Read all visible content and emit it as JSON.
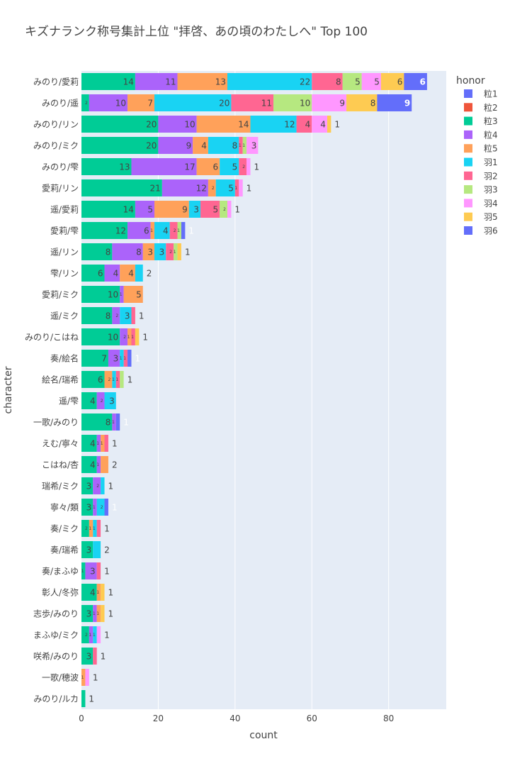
{
  "chart_data": {
    "type": "bar",
    "orientation": "horizontal",
    "barmode": "stack",
    "title": "キズナランク称号集計上位 \"拝啓、あの頃のわたしへ\" Top 100",
    "xlabel": "count",
    "ylabel": "character",
    "xlim": [
      0,
      95
    ],
    "xticks": [
      0,
      20,
      40,
      60,
      80
    ],
    "grid": true,
    "legend_title": "honor",
    "legend_position": "right",
    "categories": [
      "みのり/愛莉",
      "みのり/遥",
      "みのり/リン",
      "みのり/ミク",
      "みのり/雫",
      "愛莉/リン",
      "遥/愛莉",
      "愛莉/雫",
      "遥/リン",
      "雫/リン",
      "愛莉/ミク",
      "遥/ミク",
      "みのり/こはね",
      "奏/絵名",
      "絵名/瑞希",
      "遥/雫",
      "一歌/みのり",
      "えむ/寧々",
      "こはね/杏",
      "瑞希/ミク",
      "寧々/類",
      "奏/ミク",
      "奏/瑞希",
      "奏/まふゆ",
      "彰人/冬弥",
      "志歩/みのり",
      "まふゆ/ミク",
      "咲希/みのり",
      "一歌/穂波",
      "みのり/ルカ"
    ],
    "series": [
      {
        "name": "粒1",
        "color": "#636efa",
        "values": [
          0,
          0,
          0,
          0,
          0,
          0,
          0,
          0,
          0,
          0,
          0,
          0,
          0,
          0,
          0,
          0,
          0,
          0,
          0,
          0,
          0,
          0,
          0,
          0,
          0,
          0,
          0,
          0,
          0,
          0
        ]
      },
      {
        "name": "粒2",
        "color": "#ef553b",
        "values": [
          0,
          0,
          0,
          0,
          0,
          0,
          0,
          0,
          0,
          0,
          0,
          0,
          0,
          0,
          0,
          0,
          0,
          0,
          0,
          0,
          0,
          0,
          0,
          0,
          0,
          0,
          0,
          0,
          0,
          0
        ]
      },
      {
        "name": "粒3",
        "color": "#00cc96",
        "values": [
          14,
          2,
          20,
          20,
          13,
          21,
          14,
          12,
          8,
          6,
          10,
          8,
          10,
          7,
          6,
          4,
          8,
          4,
          4,
          3,
          3,
          2,
          3,
          1,
          4,
          3,
          2,
          3,
          0,
          1
        ]
      },
      {
        "name": "粒4",
        "color": "#ab63fa",
        "values": [
          11,
          10,
          10,
          9,
          17,
          12,
          5,
          6,
          8,
          4,
          1,
          2,
          2,
          3,
          0,
          2,
          1,
          1,
          1,
          2,
          1,
          0,
          0,
          3,
          0,
          1,
          1,
          0,
          0,
          0
        ]
      },
      {
        "name": "粒5",
        "color": "#ffa15a",
        "values": [
          13,
          7,
          14,
          4,
          6,
          2,
          9,
          1,
          3,
          4,
          5,
          0,
          1,
          0,
          2,
          0,
          0,
          1,
          2,
          0,
          0,
          1,
          0,
          0,
          1,
          1,
          0,
          0,
          1,
          0
        ]
      },
      {
        "name": "羽1",
        "color": "#19d3f3",
        "values": [
          22,
          20,
          12,
          8,
          5,
          5,
          3,
          4,
          3,
          2,
          0,
          3,
          0,
          1,
          1,
          3,
          0,
          0,
          0,
          1,
          2,
          1,
          2,
          0,
          0,
          0,
          1,
          0,
          0,
          0
        ]
      },
      {
        "name": "羽2",
        "color": "#ff6692",
        "values": [
          8,
          11,
          4,
          1,
          2,
          1,
          5,
          2,
          2,
          0,
          0,
          1,
          1,
          1,
          1,
          0,
          0,
          1,
          0,
          0,
          0,
          1,
          0,
          1,
          0,
          0,
          0,
          1,
          0,
          0
        ]
      },
      {
        "name": "羽3",
        "color": "#b6e880",
        "values": [
          5,
          10,
          0,
          1,
          0,
          0,
          2,
          1,
          1,
          0,
          0,
          0,
          0,
          0,
          1,
          0,
          0,
          0,
          0,
          0,
          0,
          0,
          0,
          0,
          0,
          0,
          0,
          0,
          0,
          0
        ]
      },
      {
        "name": "羽4",
        "color": "#ff97ff",
        "values": [
          5,
          9,
          4,
          3,
          1,
          1,
          1,
          0,
          0,
          0,
          0,
          0,
          0,
          0,
          0,
          0,
          0,
          0,
          0,
          0,
          0,
          0,
          0,
          0,
          0,
          0,
          1,
          0,
          1,
          0
        ]
      },
      {
        "name": "羽5",
        "color": "#fecb52",
        "values": [
          6,
          8,
          1,
          0,
          0,
          0,
          0,
          0,
          1,
          0,
          0,
          0,
          1,
          0,
          0,
          0,
          0,
          0,
          0,
          0,
          0,
          0,
          0,
          0,
          1,
          1,
          0,
          0,
          0,
          0
        ]
      },
      {
        "name": "羽6",
        "color": "#636efa",
        "values": [
          6,
          9,
          0,
          0,
          0,
          0,
          0,
          1,
          0,
          0,
          0,
          0,
          0,
          1,
          0,
          0,
          1,
          0,
          0,
          0,
          1,
          0,
          0,
          0,
          0,
          0,
          0,
          0,
          0,
          0
        ]
      }
    ]
  }
}
